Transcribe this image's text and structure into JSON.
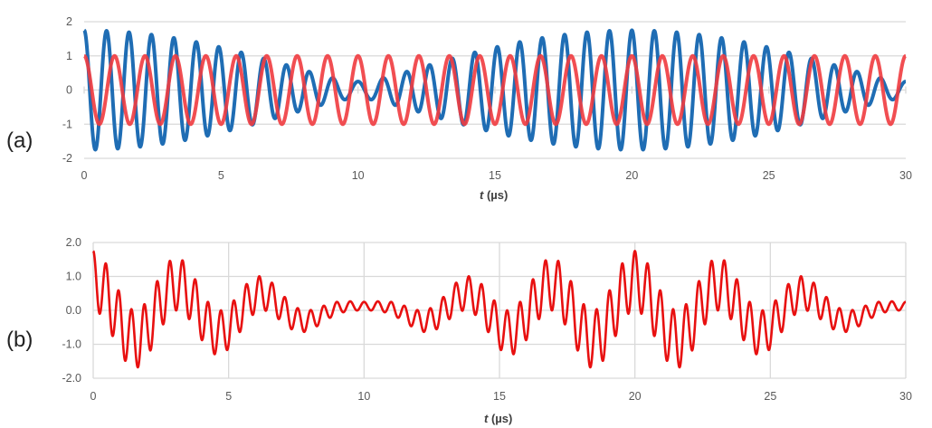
{
  "chart_data": [
    {
      "type": "line",
      "panel_label": "(a)",
      "xlabel_var": "t",
      "xlabel_unit": " (µs)",
      "xlim": [
        0,
        30
      ],
      "ylim": [
        -2,
        2
      ],
      "xticks": [
        "0",
        "5",
        "10",
        "15",
        "20",
        "25",
        "30"
      ],
      "yticks": [
        "2",
        "1",
        "0",
        "-1",
        "-2"
      ],
      "grid": "horizontal",
      "series": [
        {
          "color": "#1f6db4",
          "components": [
            {
              "amplitude": 1.0,
              "frequency_MHz": 1.2
            },
            {
              "amplitude": 0.75,
              "frequency_MHz": 1.25
            }
          ]
        },
        {
          "color": "#ef3b3f",
          "components": [
            {
              "amplitude": 1.0,
              "frequency_MHz": 0.9
            }
          ]
        }
      ]
    },
    {
      "type": "line",
      "panel_label": "(b)",
      "xlabel_var": "t",
      "xlabel_unit": " (µs)",
      "xlim": [
        0,
        30
      ],
      "ylim": [
        -2,
        2
      ],
      "xticks": [
        "0",
        "5",
        "10",
        "15",
        "20",
        "25",
        "30"
      ],
      "yticks": [
        "2.0",
        "1.0",
        "0.0",
        "-1.0",
        "-2.0"
      ],
      "grid": "both",
      "series": [
        {
          "color": "#e81010",
          "product_of_panel_a_series": true
        }
      ]
    }
  ]
}
